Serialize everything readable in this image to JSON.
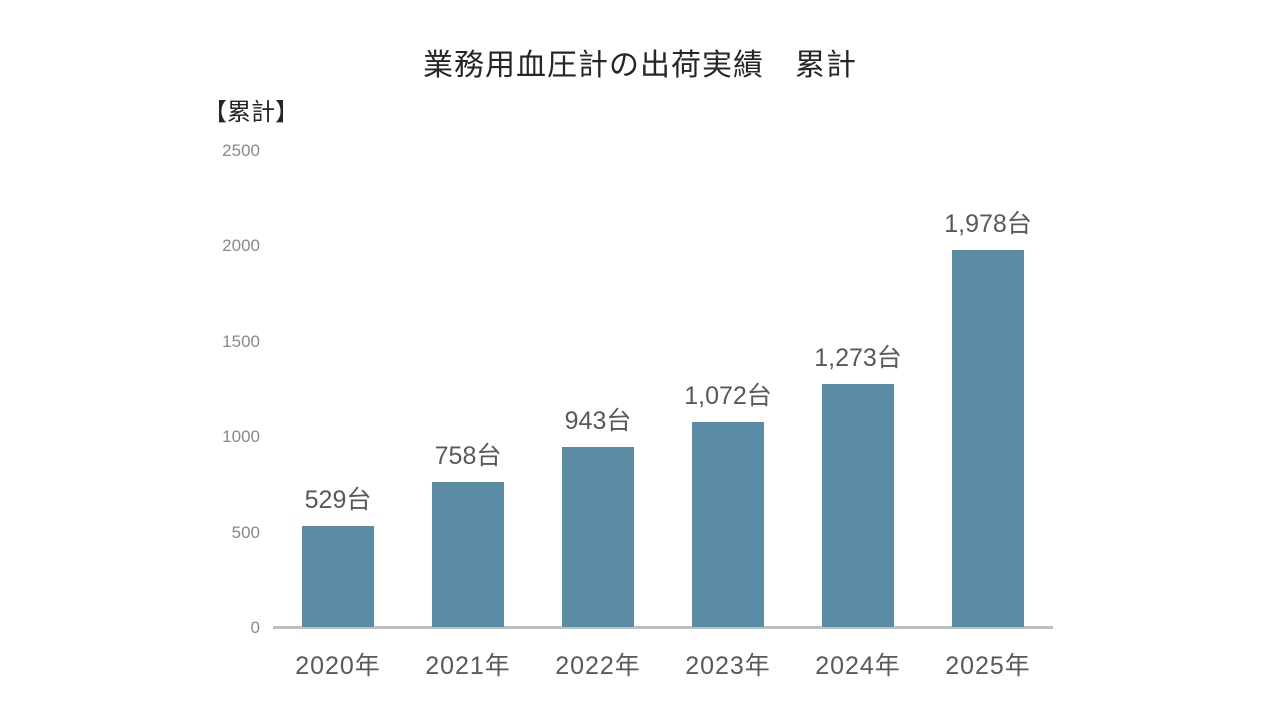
{
  "chart_data": {
    "type": "bar",
    "title": "業務用血圧計の出荷実績　累計",
    "y_axis_unit_label": "【累計】",
    "categories": [
      "2020年",
      "2021年",
      "2022年",
      "2023年",
      "2024年",
      "2025年"
    ],
    "values": [
      529,
      758,
      943,
      1072,
      1273,
      1978
    ],
    "value_labels": [
      "529台",
      "758台",
      "943台",
      "1,072台",
      "1,273台",
      "1,978台"
    ],
    "value_unit": "台",
    "ylim": [
      0,
      2500
    ],
    "yticks": [
      0,
      500,
      1000,
      1500,
      2000,
      2500
    ],
    "grid": false,
    "legend": "none",
    "colors": {
      "bar": "#5B8CA5",
      "axis_line": "#BFBFBF",
      "tick_label": "#898989",
      "data_label": "#595959",
      "category_label": "#595959",
      "title": "#262626",
      "background": "#FFFFFF"
    }
  }
}
